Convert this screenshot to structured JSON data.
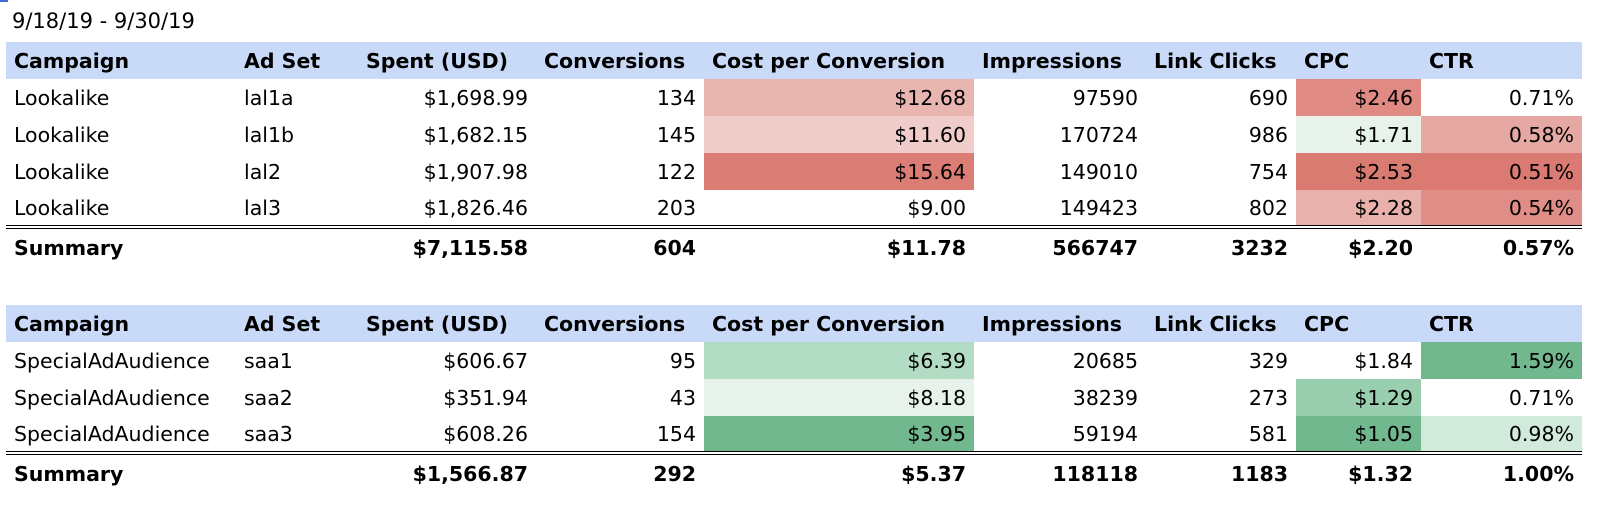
{
  "date_range": "9/18/19 - 9/30/19",
  "tables": [
    {
      "header": [
        "Campaign",
        "Ad Set",
        "Spent (USD)",
        "Conversions",
        "Cost per Conversion",
        "Impressions",
        "Link Clicks",
        "CPC",
        "CTR"
      ],
      "rows": [
        [
          "Lookalike",
          "lal1a",
          "$1,698.99",
          "134",
          "$12.68",
          "97590",
          "690",
          "$2.46",
          "0.71%"
        ],
        [
          "Lookalike",
          "lal1b",
          "$1,682.15",
          "145",
          "$11.60",
          "170724",
          "986",
          "$1.71",
          "0.58%"
        ],
        [
          "Lookalike",
          "lal2",
          "$1,907.98",
          "122",
          "$15.64",
          "149010",
          "754",
          "$2.53",
          "0.51%"
        ],
        [
          "Lookalike",
          "lal3",
          "$1,826.46",
          "203",
          "$9.00",
          "149423",
          "802",
          "$2.28",
          "0.54%"
        ]
      ],
      "fills": [
        [
          null,
          null,
          null,
          null,
          "#e8b5b1",
          null,
          null,
          "#df8a83",
          null
        ],
        [
          null,
          null,
          null,
          null,
          "#f0cdcb",
          null,
          null,
          "#e7f2ea",
          "#e6a8a2"
        ],
        [
          null,
          null,
          null,
          null,
          "#db7c75",
          null,
          null,
          "#da7b72",
          "#db7a73"
        ],
        [
          null,
          null,
          null,
          null,
          null,
          null,
          null,
          "#e8b1ab",
          "#df8d86"
        ]
      ],
      "summary": {
        "label": "Summary",
        "cells": [
          "$7,115.58",
          "604",
          "$11.78",
          "566747",
          "3232",
          "$2.20",
          "0.57%"
        ]
      }
    },
    {
      "header": [
        "Campaign",
        "Ad Set",
        "Spent (USD)",
        "Conversions",
        "Cost per Conversion",
        "Impressions",
        "Link Clicks",
        "CPC",
        "CTR"
      ],
      "rows": [
        [
          "SpecialAdAudience",
          "saa1",
          "$606.67",
          "95",
          "$6.39",
          "20685",
          "329",
          "$1.84",
          "1.59%"
        ],
        [
          "SpecialAdAudience",
          "saa2",
          "$351.94",
          "43",
          "$8.18",
          "38239",
          "273",
          "$1.29",
          "0.71%"
        ],
        [
          "SpecialAdAudience",
          "saa3",
          "$608.26",
          "154",
          "$3.95",
          "59194",
          "581",
          "$1.05",
          "0.98%"
        ]
      ],
      "fills": [
        [
          null,
          null,
          null,
          null,
          "#b2dcc3",
          null,
          null,
          null,
          "#72b88f"
        ],
        [
          null,
          null,
          null,
          null,
          "#e6f2ea",
          null,
          null,
          "#99cfae",
          null
        ],
        [
          null,
          null,
          null,
          null,
          "#72b88f",
          null,
          null,
          "#72b88f",
          "#d2eadc"
        ]
      ],
      "summary": {
        "label": "Summary",
        "cells": [
          "$1,566.87",
          "292",
          "$5.37",
          "118118",
          "1183",
          "$1.32",
          "1.00%"
        ]
      }
    }
  ]
}
